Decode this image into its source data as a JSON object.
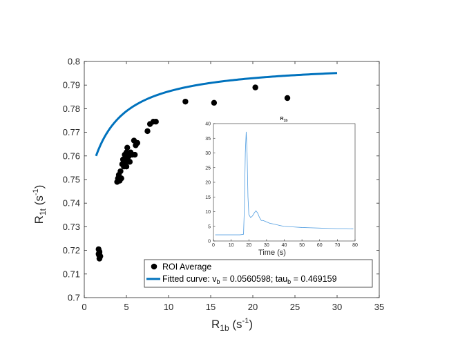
{
  "colors": {
    "points": "#000000",
    "fit_curve": "#0072BD",
    "inset_line": "#4D9BE0",
    "axes": "#262626"
  },
  "chart_data": [
    {
      "type": "scatter",
      "xlabel_main": "R",
      "xlabel_sub": "1b",
      "xlabel_unit": " (s",
      "xlabel_exp": "-1",
      "xlabel_close": ")",
      "ylabel_main": "R",
      "ylabel_sub": "1t",
      "ylabel_unit": " (s",
      "ylabel_exp": "-1",
      "ylabel_close": ")",
      "xlim": [
        0,
        35
      ],
      "ylim": [
        0.7,
        0.8
      ],
      "xticks": [
        0,
        5,
        10,
        15,
        20,
        25,
        30,
        35
      ],
      "yticks": [
        0.7,
        0.71,
        0.72,
        0.73,
        0.74,
        0.75,
        0.76,
        0.77,
        0.78,
        0.79,
        0.8
      ],
      "ytick_labels": [
        "0.7",
        "0.71",
        "0.72",
        "0.73",
        "0.74",
        "0.75",
        "0.76",
        "0.77",
        "0.78",
        "0.79",
        "0.8"
      ],
      "grid": false,
      "legend_placement": "bottom-right",
      "series": [
        {
          "name": "ROI Average",
          "kind": "points",
          "x": [
            1.7,
            1.8,
            1.75,
            1.85,
            1.8,
            1.7,
            1.9,
            1.8,
            3.9,
            4.0,
            4.1,
            4.2,
            4.3,
            4.5,
            4.4,
            4.6,
            4.7,
            4.8,
            4.9,
            5.0,
            5.1,
            5.0,
            4.9,
            5.2,
            5.3,
            5.5,
            5.4,
            5.7,
            5.9,
            6.0,
            6.1,
            6.3,
            7.5,
            7.8,
            8.2,
            8.5,
            12.0,
            15.4,
            20.3,
            24.1
          ],
          "y": [
            0.7205,
            0.719,
            0.718,
            0.7172,
            0.7165,
            0.7185,
            0.7175,
            0.7195,
            0.749,
            0.7505,
            0.752,
            0.7495,
            0.7535,
            0.7565,
            0.7505,
            0.7585,
            0.7555,
            0.7605,
            0.759,
            0.7615,
            0.7635,
            0.7555,
            0.7575,
            0.7595,
            0.76,
            0.7615,
            0.7575,
            0.7605,
            0.7665,
            0.7605,
            0.7645,
            0.7655,
            0.7705,
            0.7735,
            0.7745,
            0.7745,
            0.783,
            0.7825,
            0.789,
            0.7845
          ]
        },
        {
          "name_main": "Fitted curve: v",
          "name_sub1": "b",
          "name_mid": " = 0.0560598; tau",
          "name_sub2": "b",
          "name_end": " = 0.469159",
          "kind": "line",
          "model": "R1t = 0.8 - 0.16 / (R1b + 2.6)",
          "x_range": [
            1.4,
            30
          ]
        }
      ]
    },
    {
      "type": "line",
      "title_main": "R",
      "title_sub": "1b",
      "xlabel": "Time (s)",
      "ylabel": "",
      "xlim": [
        0,
        80
      ],
      "ylim": [
        0,
        40
      ],
      "xticks": [
        0,
        10,
        20,
        30,
        40,
        50,
        60,
        70,
        80
      ],
      "yticks": [
        0,
        5,
        10,
        15,
        20,
        25,
        30,
        35,
        40
      ],
      "grid": false,
      "series": [
        {
          "x": [
            1,
            5,
            10,
            15,
            17,
            17.5,
            18,
            18.5,
            19,
            19.5,
            20,
            21,
            22,
            23,
            24,
            25,
            26,
            27,
            28,
            30,
            32,
            34,
            36,
            38,
            40,
            45,
            50,
            55,
            60,
            65,
            70,
            75,
            79
          ],
          "y": [
            2.1,
            2.1,
            2.1,
            2.1,
            2.3,
            12,
            30,
            37.2,
            30,
            15,
            9,
            8,
            8.5,
            9.5,
            10.3,
            9.5,
            8,
            7,
            7,
            6.5,
            6,
            5.8,
            5.5,
            5.2,
            5.0,
            4.8,
            4.6,
            4.5,
            4.4,
            4.3,
            4.2,
            4.2,
            4.1
          ]
        }
      ]
    }
  ]
}
